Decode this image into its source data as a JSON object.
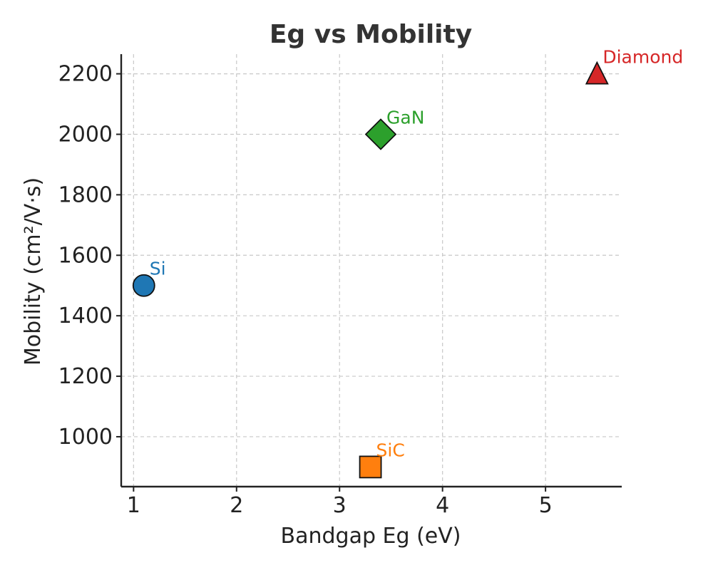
{
  "chart_data": {
    "type": "scatter",
    "title": "Eg vs Mobility",
    "xlabel": "Bandgap Eg (eV)",
    "ylabel": "Mobility (cm²/V·s)",
    "xlim": [
      0.88,
      5.74
    ],
    "ylim": [
      835,
      2265
    ],
    "xticks": [
      1,
      2,
      3,
      4,
      5
    ],
    "yticks": [
      1000,
      1200,
      1400,
      1600,
      1800,
      2000,
      2200
    ],
    "grid": true,
    "points": [
      {
        "label": "Si",
        "x": 1.1,
        "y": 1500,
        "marker": "circle",
        "color": "#1f77b4"
      },
      {
        "label": "SiC",
        "x": 3.3,
        "y": 900,
        "marker": "square",
        "color": "#ff7f0e"
      },
      {
        "label": "GaN",
        "x": 3.4,
        "y": 2000,
        "marker": "diamond",
        "color": "#2ca02c"
      },
      {
        "label": "Diamond",
        "x": 5.5,
        "y": 2200,
        "marker": "triangle",
        "color": "#d62728"
      }
    ]
  }
}
